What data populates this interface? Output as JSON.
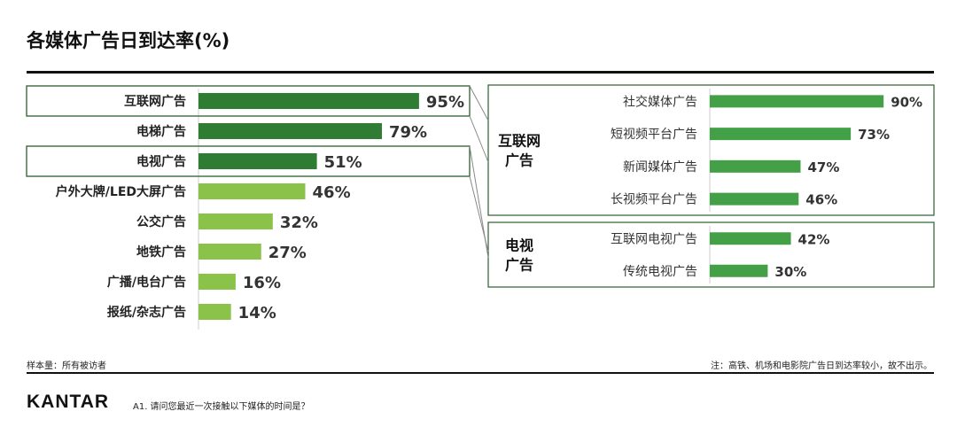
{
  "title": "各媒体广告日到达率(%)",
  "footnote_left": "样本量：所有被访者",
  "footnote_right": "注：高铁、机场和电影院广告日到达率较小，故不出示。",
  "logo": "KANTAR",
  "question": "A1. 请问您最近一次接触以下媒体的时间是？",
  "colors": {
    "dark_green": "#2e7d32",
    "light_green": "#8bc34a",
    "mid_green": "#43a047",
    "box": "#2e5e2e"
  },
  "chart_data": [
    {
      "type": "bar",
      "orientation": "horizontal",
      "categories": [
        "互联网广告",
        "电梯广告",
        "电视广告",
        "户外大牌/LED大屏广告",
        "公交广告",
        "地铁广告",
        "广播/电台广告",
        "报纸/杂志广告"
      ],
      "values": [
        95,
        79,
        51,
        46,
        32,
        27,
        16,
        14
      ],
      "value_labels": [
        "95%",
        "79%",
        "51%",
        "46%",
        "32%",
        "27%",
        "16%",
        "14%"
      ],
      "highlight": [
        true,
        true,
        true,
        false,
        false,
        false,
        false,
        false
      ],
      "boxed": [
        "互联网广告",
        "电视广告"
      ],
      "xlim": [
        0,
        100
      ]
    },
    {
      "type": "bar",
      "orientation": "horizontal",
      "group": "互联网广告",
      "group_label": "互联网\n广告",
      "categories": [
        "社交媒体广告",
        "短视频平台广告",
        "新闻媒体广告",
        "长视频平台广告"
      ],
      "values": [
        90,
        73,
        47,
        46
      ],
      "value_labels": [
        "90%",
        "73%",
        "47%",
        "46%"
      ],
      "xlim": [
        0,
        100
      ]
    },
    {
      "type": "bar",
      "orientation": "horizontal",
      "group": "电视广告",
      "group_label": "电视\n广告",
      "categories": [
        "互联网电视广告",
        "传统电视广告"
      ],
      "values": [
        42,
        30
      ],
      "value_labels": [
        "42%",
        "30%"
      ],
      "xlim": [
        0,
        100
      ]
    }
  ]
}
